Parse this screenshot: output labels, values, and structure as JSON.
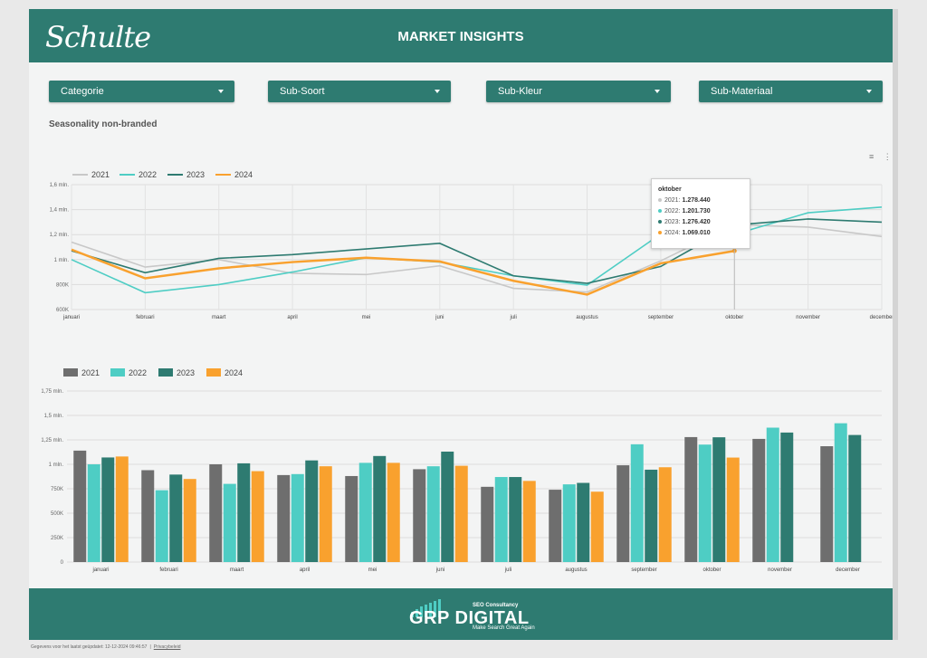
{
  "header": {
    "logo_text": "Schulte",
    "title": "MARKET INSIGHTS",
    "brand_color": "#2e7b71"
  },
  "filters": [
    {
      "label": "Categorie",
      "icon": "chevron-down-icon"
    },
    {
      "label": "Sub-Soort",
      "icon": "chevron-down-icon"
    },
    {
      "label": "Sub-Kleur",
      "icon": "chevron-down-icon"
    },
    {
      "label": "Sub-Materiaal",
      "icon": "chevron-down-icon"
    }
  ],
  "section_title": "Seasonality non-branded",
  "chart_toolbar": {
    "filter_icon": "filter-icon",
    "more_icon": "more-vert-icon",
    "filter_glyph": "≡",
    "more_glyph": "⋮"
  },
  "series_colors": {
    "2021": "#c8c8c8",
    "2022": "#4ecdc4",
    "2023": "#2e7b71",
    "2024": "#f9a12e"
  },
  "bar_colors": {
    "2021": "#6e6e6e",
    "2022": "#4ecdc4",
    "2023": "#2e7b71",
    "2024": "#f9a12e"
  },
  "chart_data": [
    {
      "type": "line",
      "categories": [
        "januari",
        "februari",
        "maart",
        "april",
        "mei",
        "juni",
        "juli",
        "augustus",
        "september",
        "oktober",
        "november",
        "december"
      ],
      "series": [
        {
          "name": "2021",
          "values": [
            1140000,
            940000,
            1000000,
            890000,
            880000,
            950000,
            770000,
            740000,
            990000,
            1278440,
            1260000,
            1185000
          ]
        },
        {
          "name": "2022",
          "values": [
            1000000,
            735000,
            800000,
            900000,
            1015000,
            980000,
            870000,
            795000,
            1205000,
            1201730,
            1375000,
            1420000
          ]
        },
        {
          "name": "2023",
          "values": [
            1070000,
            895000,
            1010000,
            1040000,
            1085000,
            1130000,
            870000,
            810000,
            945000,
            1276420,
            1325000,
            1300000
          ]
        },
        {
          "name": "2024",
          "values": [
            1080000,
            850000,
            930000,
            980000,
            1015000,
            985000,
            830000,
            720000,
            970000,
            1069010,
            null,
            null
          ]
        }
      ],
      "y_ticks": [
        "600K",
        "800K",
        "1 mln.",
        "1,2 mln.",
        "1,4 mln.",
        "1,6 mln."
      ],
      "ylim": [
        600000,
        1600000
      ],
      "grid": true,
      "legend": "top-left",
      "tooltip": {
        "title": "oktober",
        "rows": [
          {
            "label": "2021:",
            "value": "1.278.440"
          },
          {
            "label": "2022:",
            "value": "1.201.730"
          },
          {
            "label": "2023:",
            "value": "1.276.420"
          },
          {
            "label": "2024:",
            "value": "1.069.010"
          }
        ]
      }
    },
    {
      "type": "bar",
      "categories": [
        "januari",
        "februari",
        "maart",
        "april",
        "mei",
        "juni",
        "juli",
        "augustus",
        "september",
        "oktober",
        "november",
        "december"
      ],
      "series": [
        {
          "name": "2021",
          "values": [
            1140000,
            940000,
            1000000,
            890000,
            880000,
            950000,
            770000,
            740000,
            990000,
            1278440,
            1260000,
            1185000
          ]
        },
        {
          "name": "2022",
          "values": [
            1000000,
            735000,
            800000,
            900000,
            1015000,
            980000,
            870000,
            795000,
            1205000,
            1201730,
            1375000,
            1420000
          ]
        },
        {
          "name": "2023",
          "values": [
            1070000,
            895000,
            1010000,
            1040000,
            1085000,
            1130000,
            870000,
            810000,
            945000,
            1276420,
            1325000,
            1300000
          ]
        },
        {
          "name": "2024",
          "values": [
            1080000,
            850000,
            930000,
            980000,
            1015000,
            985000,
            830000,
            720000,
            970000,
            1069010,
            null,
            null
          ]
        }
      ],
      "y_ticks": [
        "0",
        "250K",
        "500K",
        "750K",
        "1 mln.",
        "1,25 mln.",
        "1,5 mln.",
        "1,75 mln."
      ],
      "ylim": [
        0,
        1750000
      ],
      "grid": true,
      "legend": "top-left"
    }
  ],
  "footer": {
    "brand": "GRP DIGITAL",
    "tagline_top": "SEO Consultancy",
    "tagline_bottom": "Make Search Great Again"
  },
  "bottom_note": {
    "updated": "Gegevens voor het laatst geüpdatet: 12-12-2024 09:46:57",
    "privacy": "Privacybeleid"
  }
}
